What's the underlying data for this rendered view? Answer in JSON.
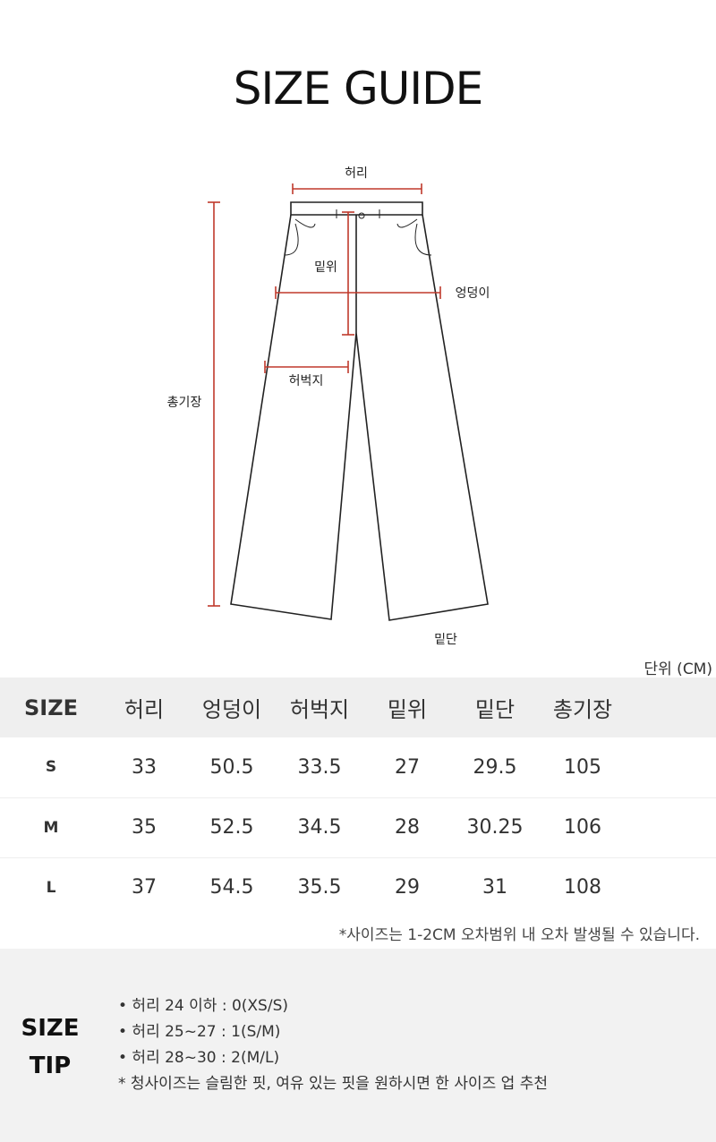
{
  "title": "SIZE GUIDE",
  "diagram": {
    "labels": {
      "waist": "허리",
      "rise": "밑위",
      "hip": "엉덩이",
      "thigh": "허벅지",
      "length": "총기장",
      "hem": "밑단"
    },
    "measure_color": "#c0392b"
  },
  "unit": "단위 (CM)",
  "table": {
    "headers": [
      "SIZE",
      "허리",
      "엉덩이",
      "허벅지",
      "밑위",
      "밑단",
      "총기장"
    ],
    "rows": [
      [
        "S",
        "33",
        "50.5",
        "33.5",
        "27",
        "29.5",
        "105"
      ],
      [
        "M",
        "35",
        "52.5",
        "34.5",
        "28",
        "30.25",
        "106"
      ],
      [
        "L",
        "37",
        "54.5",
        "35.5",
        "29",
        "31",
        "108"
      ]
    ]
  },
  "note": "*사이즈는 1-2CM 오차범위 내 오차 발생될 수 있습니다.",
  "tip": {
    "title_line1": "SIZE",
    "title_line2": "TIP",
    "items": [
      "• 허리 24 이하 : 0(XS/S)",
      "• 허리 25~27 : 1(S/M)",
      "• 허리 28~30 : 2(M/L)",
      "* 청사이즈는 슬림한 핏, 여유 있는 핏을 원하시면 한 사이즈 업 추천"
    ]
  }
}
